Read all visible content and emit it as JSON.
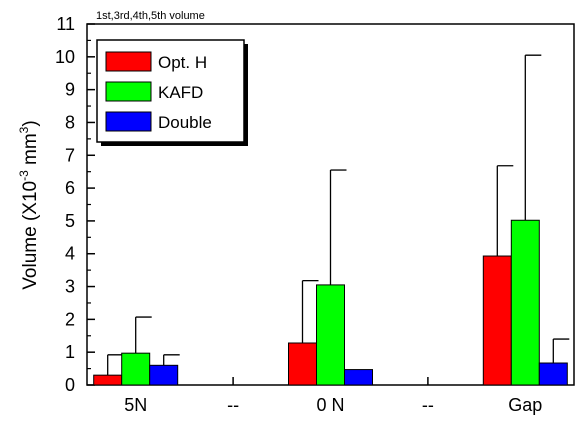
{
  "chart_data": {
    "type": "bar",
    "annotation": "1st,3rd,4th,5th volume",
    "categories": [
      "5N",
      "--",
      "0 N",
      "--",
      "Gap"
    ],
    "ylabel": "Volume (X10",
    "ylabel_exponent": "-3",
    "ylabel_unit": " mm",
    "ylabel_unit_exponent": "3",
    "ylabel_close": ")",
    "ylim": [
      0,
      11
    ],
    "yticks": [
      0,
      1,
      2,
      3,
      4,
      5,
      6,
      7,
      8,
      9,
      10,
      11
    ],
    "series": [
      {
        "name": "Opt. H",
        "color": "#ff0000",
        "values": [
          0.3,
          null,
          1.28,
          null,
          3.93
        ],
        "errors": [
          0.62,
          null,
          1.9,
          null,
          2.75
        ]
      },
      {
        "name": "KAFD",
        "color": "#00ff00",
        "values": [
          0.97,
          null,
          3.05,
          null,
          5.02
        ],
        "errors": [
          1.1,
          null,
          3.5,
          null,
          5.03
        ]
      },
      {
        "name": "Double",
        "color": "#0000ff",
        "values": [
          0.6,
          null,
          0.47,
          null,
          0.67
        ],
        "errors": [
          0.32,
          null,
          0.0,
          null,
          0.73
        ]
      }
    ],
    "legend": {
      "position": "top-left",
      "entries": [
        "Opt. H",
        "KAFD",
        "Double"
      ]
    },
    "grid": false
  }
}
